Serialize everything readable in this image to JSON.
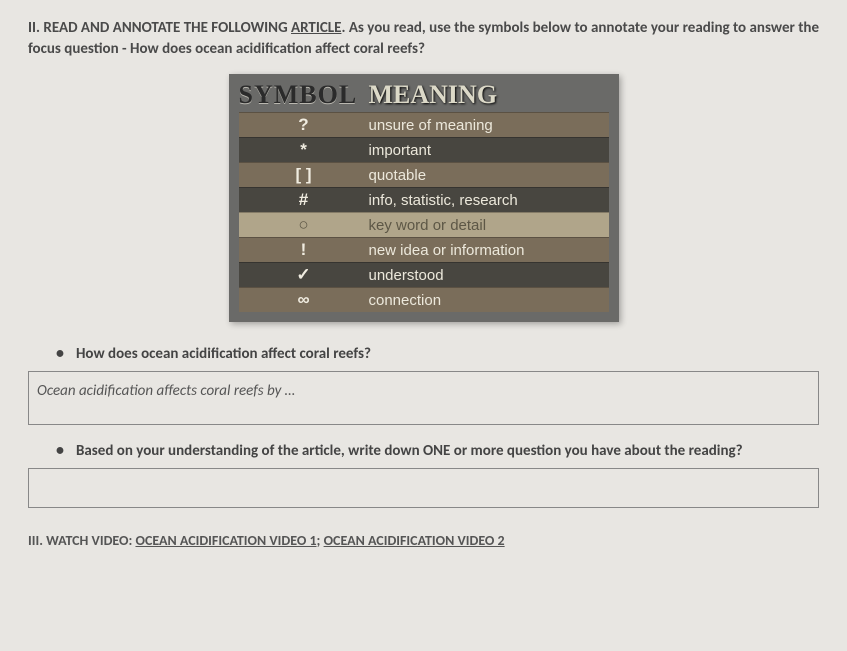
{
  "section2": {
    "prefix": "II. READ AND ANNOTATE THE FOLLOWING ",
    "link": "ARTICLE",
    "suffix": ". As you read, use the symbols below to annotate your reading to answer the focus question - How does ocean acidification affect coral reefs?"
  },
  "table": {
    "head_symbol": "SYMBOL",
    "head_meaning": "MEANING",
    "rows": [
      {
        "sym": "?",
        "mean": "unsure of meaning",
        "cls": "a"
      },
      {
        "sym": "*",
        "mean": "important",
        "cls": "b"
      },
      {
        "sym": "[ ]",
        "mean": "quotable",
        "cls": "a"
      },
      {
        "sym": "#",
        "mean": "info, statistic, research",
        "cls": "b"
      },
      {
        "sym": "○",
        "mean": "key word or detail",
        "cls": "c"
      },
      {
        "sym": "!",
        "mean": "new idea or information",
        "cls": "a"
      },
      {
        "sym": "✓",
        "mean": "understood",
        "cls": "b"
      },
      {
        "sym": "∞",
        "mean": "connection",
        "cls": "a"
      }
    ]
  },
  "q1": {
    "text": "How does ocean acidification affect coral reefs?",
    "prompt": "Ocean acidification affects coral reefs by …"
  },
  "q2": {
    "text": "Based on your understanding of the article, write down ONE or more question you have about the reading?"
  },
  "section3": {
    "prefix": "III. WATCH VIDEO: ",
    "link1": "OCEAN ACIDIFICATION VIDEO 1",
    "sep": "; ",
    "link2": "OCEAN ACIDIFICATION VIDEO 2"
  }
}
